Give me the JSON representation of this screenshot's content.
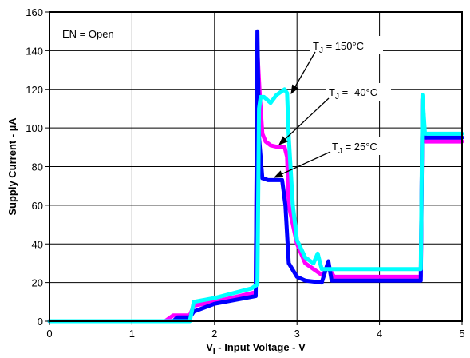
{
  "chart_data": {
    "type": "line",
    "xlabel": {
      "main": "V",
      "sub": "I",
      "rest": " - Input Voltage - V"
    },
    "ylabel": "Supply Current - µA",
    "xlim": [
      0,
      5
    ],
    "ylim": [
      0,
      160
    ],
    "xticks": [
      0,
      1,
      2,
      3,
      4,
      5
    ],
    "yticks": [
      0,
      20,
      40,
      60,
      80,
      100,
      120,
      140,
      160
    ],
    "grid": true,
    "annotations": [
      {
        "id": "en",
        "text": "EN = Open"
      },
      {
        "id": "t150",
        "pre": "T",
        "sub": "J",
        "post": " = 150°C"
      },
      {
        "id": "tm40",
        "pre": "T",
        "sub": "J",
        "post": " = -40°C"
      },
      {
        "id": "t25",
        "pre": "T",
        "sub": "J",
        "post": " = 25°C"
      }
    ],
    "series": [
      {
        "color": "#ff00ff",
        "x": [
          0,
          1.4,
          1.5,
          1.7,
          1.75,
          2.0,
          2.5,
          2.52,
          2.55,
          2.58,
          2.62,
          2.68,
          2.78,
          2.85,
          2.88,
          2.9,
          3.0,
          3.1,
          3.3,
          3.38,
          3.45,
          4.5,
          4.52,
          4.55,
          4.6,
          5.0
        ],
        "y": [
          0,
          0,
          3,
          3,
          8,
          10,
          15,
          140,
          116,
          97,
          93,
          91,
          90,
          90,
          85,
          60,
          40,
          30,
          24,
          28,
          23,
          23,
          115,
          93,
          93,
          93
        ]
      },
      {
        "color": "#0000ff",
        "x": [
          0,
          1.5,
          1.55,
          1.7,
          1.75,
          2.0,
          2.5,
          2.52,
          2.54,
          2.58,
          2.65,
          2.82,
          2.86,
          2.9,
          3.0,
          3.1,
          3.3,
          3.38,
          3.42,
          4.5,
          4.52,
          4.55,
          5.0
        ],
        "y": [
          0,
          0,
          2,
          2,
          5,
          9,
          13,
          150,
          95,
          74,
          73,
          73,
          60,
          30,
          23,
          21,
          20,
          31,
          21,
          21,
          115,
          95,
          95
        ]
      },
      {
        "color": "#00ffff",
        "x": [
          0,
          1.7,
          1.75,
          2.0,
          2.45,
          2.52,
          2.54,
          2.56,
          2.6,
          2.68,
          2.75,
          2.85,
          2.88,
          2.9,
          2.95,
          3.0,
          3.1,
          3.2,
          3.25,
          3.28,
          3.3,
          4.5,
          4.52,
          4.55,
          5.0
        ],
        "y": [
          0,
          0,
          10,
          12,
          17,
          19,
          110,
          116,
          116,
          113,
          117,
          120,
          118,
          95,
          60,
          42,
          33,
          30,
          35,
          30,
          27,
          27,
          117,
          97,
          97
        ]
      }
    ]
  }
}
